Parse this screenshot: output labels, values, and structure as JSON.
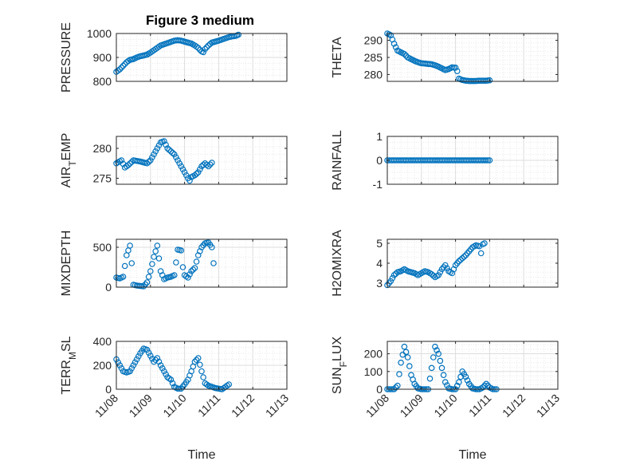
{
  "figure": {
    "title": "Figure 3 medium"
  },
  "chart_data": [
    {
      "type": "scatter",
      "id": "pressure",
      "ylabel": "PRESSURE",
      "xlabel": "",
      "ylim": [
        800,
        1000
      ],
      "yticks": [
        "800",
        "900",
        "1000"
      ],
      "xlim": [
        0,
        5
      ],
      "xticks": [],
      "grid": "on",
      "marker_color": "#0072BD",
      "curve": [
        [
          0.0,
          840
        ],
        [
          0.1,
          850
        ],
        [
          0.2,
          865
        ],
        [
          0.3,
          880
        ],
        [
          0.4,
          890
        ],
        [
          0.5,
          893
        ],
        [
          0.6,
          900
        ],
        [
          0.7,
          905
        ],
        [
          0.8,
          908
        ],
        [
          0.9,
          912
        ],
        [
          1.0,
          920
        ],
        [
          1.1,
          930
        ],
        [
          1.2,
          940
        ],
        [
          1.3,
          950
        ],
        [
          1.4,
          955
        ],
        [
          1.5,
          960
        ],
        [
          1.6,
          965
        ],
        [
          1.7,
          970
        ],
        [
          1.8,
          972
        ],
        [
          1.9,
          970
        ],
        [
          2.0,
          966
        ],
        [
          2.1,
          962
        ],
        [
          2.2,
          958
        ],
        [
          2.3,
          950
        ],
        [
          2.4,
          940
        ],
        [
          2.45,
          932
        ],
        [
          2.5,
          925
        ],
        [
          2.55,
          922
        ],
        [
          2.6,
          935
        ],
        [
          2.7,
          950
        ],
        [
          2.8,
          962
        ],
        [
          2.9,
          966
        ],
        [
          3.0,
          970
        ],
        [
          3.1,
          975
        ],
        [
          3.2,
          980
        ],
        [
          3.3,
          985
        ],
        [
          3.4,
          988
        ],
        [
          3.5,
          990
        ],
        [
          3.58,
          995
        ]
      ]
    },
    {
      "type": "scatter",
      "id": "theta",
      "ylabel": "THETA",
      "xlabel": "",
      "ylim": [
        278,
        292
      ],
      "yticks": [
        "280",
        "285",
        "290"
      ],
      "xlim": [
        0,
        5
      ],
      "xticks": [],
      "grid": "on",
      "marker_color": "#0072BD",
      "curve": [
        [
          0.0,
          292
        ],
        [
          0.1,
          291.5
        ],
        [
          0.2,
          289
        ],
        [
          0.3,
          287
        ],
        [
          0.4,
          286.5
        ],
        [
          0.5,
          286
        ],
        [
          0.6,
          285
        ],
        [
          0.7,
          284.5
        ],
        [
          0.8,
          284
        ],
        [
          0.9,
          283.6
        ],
        [
          1.0,
          283.3
        ],
        [
          1.1,
          283.2
        ],
        [
          1.2,
          283.1
        ],
        [
          1.3,
          283
        ],
        [
          1.4,
          282.7
        ],
        [
          1.5,
          282.3
        ],
        [
          1.6,
          281.8
        ],
        [
          1.7,
          281.3
        ],
        [
          1.8,
          281.6
        ],
        [
          1.9,
          282.1
        ],
        [
          2.0,
          282
        ],
        [
          2.05,
          281
        ],
        [
          2.1,
          278.8
        ],
        [
          2.2,
          278.4
        ],
        [
          2.3,
          278.2
        ],
        [
          2.4,
          278.1
        ],
        [
          2.5,
          278.1
        ],
        [
          2.6,
          278.1
        ],
        [
          2.7,
          278.2
        ],
        [
          2.8,
          278.2
        ],
        [
          2.9,
          278.2
        ],
        [
          3.0,
          278.3
        ]
      ]
    },
    {
      "type": "scatter",
      "id": "air_temp",
      "ylabel": "AIR",
      "ylabel_sub": "T",
      "ylabel_rest": "EMP",
      "xlabel": "",
      "ylim": [
        274,
        282
      ],
      "yticks": [
        "275",
        "280"
      ],
      "xlim": [
        0,
        5
      ],
      "xticks": [],
      "grid": "on",
      "marker_color": "#0072BD",
      "curve": [
        [
          0.0,
          277.5
        ],
        [
          0.15,
          278
        ],
        [
          0.25,
          276.8
        ],
        [
          0.35,
          277.2
        ],
        [
          0.5,
          278
        ],
        [
          0.7,
          277.8
        ],
        [
          0.9,
          277.5
        ],
        [
          1.0,
          278
        ],
        [
          1.1,
          279
        ],
        [
          1.2,
          280
        ],
        [
          1.3,
          281
        ],
        [
          1.4,
          281.2
        ],
        [
          1.5,
          280
        ],
        [
          1.6,
          279.5
        ],
        [
          1.7,
          279
        ],
        [
          1.8,
          278
        ],
        [
          1.9,
          277
        ],
        [
          2.0,
          276
        ],
        [
          2.1,
          275
        ],
        [
          2.15,
          274.6
        ],
        [
          2.2,
          275.2
        ],
        [
          2.3,
          275.5
        ],
        [
          2.4,
          276
        ],
        [
          2.5,
          277
        ],
        [
          2.6,
          277.5
        ],
        [
          2.7,
          277
        ],
        [
          2.8,
          277.6
        ]
      ]
    },
    {
      "type": "scatter",
      "id": "rainfall",
      "ylabel": "RAINFALL",
      "xlabel": "",
      "ylim": [
        -1,
        1
      ],
      "yticks": [
        "-1",
        "0",
        "1"
      ],
      "xlim": [
        0,
        5
      ],
      "xticks": [],
      "grid": "on",
      "marker_color": "#0072BD",
      "curve": [
        [
          0.0,
          0
        ],
        [
          3.0,
          0
        ]
      ]
    },
    {
      "type": "scatter",
      "id": "mixdepth",
      "ylabel": "MIXDEPTH",
      "xlabel": "",
      "ylim": [
        0,
        600
      ],
      "yticks": [
        "0",
        "500"
      ],
      "xlim": [
        0,
        5
      ],
      "xticks": [],
      "grid": "on",
      "marker_color": "#0072BD",
      "curve": [
        [
          0.0,
          120
        ],
        [
          0.1,
          110
        ],
        [
          0.2,
          130
        ],
        [
          0.3,
          400
        ],
        [
          0.4,
          520
        ],
        [
          0.45,
          300
        ],
        [
          0.5,
          30
        ],
        [
          0.6,
          20
        ],
        [
          0.7,
          15
        ],
        [
          0.8,
          10
        ],
        [
          0.9,
          60
        ],
        [
          1.0,
          200
        ],
        [
          1.1,
          380
        ],
        [
          1.2,
          520
        ],
        [
          1.3,
          200
        ],
        [
          1.4,
          100
        ],
        [
          1.5,
          120
        ],
        [
          1.6,
          130
        ],
        [
          1.7,
          150
        ],
        [
          1.8,
          470
        ],
        [
          1.9,
          460
        ],
        [
          1.95,
          250
        ],
        [
          2.0,
          150
        ],
        [
          2.1,
          120
        ],
        [
          2.2,
          200
        ],
        [
          2.3,
          240
        ],
        [
          2.4,
          400
        ],
        [
          2.5,
          500
        ],
        [
          2.6,
          550
        ],
        [
          2.7,
          560
        ],
        [
          2.8,
          500
        ],
        [
          2.85,
          300
        ]
      ]
    },
    {
      "type": "scatter",
      "id": "h2omixra",
      "ylabel": "H2OMIXRA",
      "xlabel": "",
      "ylim": [
        2.8,
        5.2
      ],
      "yticks": [
        "3",
        "4",
        "5"
      ],
      "xlim": [
        0,
        5
      ],
      "xticks": [],
      "grid": "on",
      "marker_color": "#0072BD",
      "curve": [
        [
          0.0,
          2.9
        ],
        [
          0.1,
          3.1
        ],
        [
          0.2,
          3.4
        ],
        [
          0.3,
          3.55
        ],
        [
          0.4,
          3.6
        ],
        [
          0.5,
          3.7
        ],
        [
          0.6,
          3.6
        ],
        [
          0.7,
          3.55
        ],
        [
          0.8,
          3.5
        ],
        [
          0.9,
          3.4
        ],
        [
          1.0,
          3.5
        ],
        [
          1.1,
          3.6
        ],
        [
          1.2,
          3.55
        ],
        [
          1.3,
          3.45
        ],
        [
          1.4,
          3.3
        ],
        [
          1.5,
          3.4
        ],
        [
          1.6,
          3.7
        ],
        [
          1.7,
          3.9
        ],
        [
          1.8,
          3.6
        ],
        [
          1.9,
          3.5
        ],
        [
          2.0,
          3.9
        ],
        [
          2.1,
          4.1
        ],
        [
          2.2,
          4.25
        ],
        [
          2.3,
          4.4
        ],
        [
          2.4,
          4.6
        ],
        [
          2.5,
          4.8
        ],
        [
          2.6,
          4.9
        ],
        [
          2.7,
          4.85
        ],
        [
          2.75,
          4.5
        ],
        [
          2.8,
          4.95
        ],
        [
          2.85,
          5.0
        ]
      ]
    },
    {
      "type": "scatter",
      "id": "terr_msl",
      "ylabel": "TERR",
      "ylabel_sub": "M",
      "ylabel_rest": "SL",
      "xlabel": "Time",
      "ylim": [
        0,
        400
      ],
      "yticks": [
        "0",
        "200",
        "400"
      ],
      "xlim": [
        0,
        5
      ],
      "xticks": [
        "11/08",
        "11/09",
        "11/10",
        "11/11",
        "11/12",
        "11/13"
      ],
      "grid": "on",
      "marker_color": "#0072BD",
      "curve": [
        [
          0.0,
          250
        ],
        [
          0.1,
          200
        ],
        [
          0.2,
          150
        ],
        [
          0.3,
          140
        ],
        [
          0.4,
          150
        ],
        [
          0.5,
          200
        ],
        [
          0.6,
          250
        ],
        [
          0.7,
          300
        ],
        [
          0.8,
          340
        ],
        [
          0.9,
          330
        ],
        [
          1.0,
          280
        ],
        [
          1.1,
          230
        ],
        [
          1.2,
          260
        ],
        [
          1.3,
          200
        ],
        [
          1.4,
          150
        ],
        [
          1.5,
          100
        ],
        [
          1.6,
          80
        ],
        [
          1.7,
          20
        ],
        [
          1.8,
          5
        ],
        [
          1.9,
          5
        ],
        [
          2.0,
          40
        ],
        [
          2.1,
          80
        ],
        [
          2.2,
          150
        ],
        [
          2.3,
          230
        ],
        [
          2.4,
          260
        ],
        [
          2.5,
          150
        ],
        [
          2.6,
          50
        ],
        [
          2.7,
          30
        ],
        [
          2.8,
          20
        ],
        [
          2.9,
          10
        ],
        [
          3.0,
          5
        ],
        [
          3.1,
          0
        ],
        [
          3.2,
          20
        ],
        [
          3.3,
          40
        ]
      ]
    },
    {
      "type": "scatter",
      "id": "sun_flux",
      "ylabel": "SUN",
      "ylabel_sub": "F",
      "ylabel_rest": "LUX",
      "xlabel": "Time",
      "ylim": [
        0,
        270
      ],
      "yticks": [
        "0",
        "100",
        "200"
      ],
      "xlim": [
        0,
        5
      ],
      "xticks": [
        "11/08",
        "11/09",
        "11/10",
        "11/11",
        "11/12",
        "11/13"
      ],
      "grid": "on",
      "marker_color": "#0072BD",
      "curve": [
        [
          0.0,
          0
        ],
        [
          0.1,
          0
        ],
        [
          0.2,
          0
        ],
        [
          0.3,
          20
        ],
        [
          0.4,
          150
        ],
        [
          0.5,
          240
        ],
        [
          0.6,
          180
        ],
        [
          0.7,
          80
        ],
        [
          0.8,
          30
        ],
        [
          0.9,
          5
        ],
        [
          1.0,
          0
        ],
        [
          1.1,
          0
        ],
        [
          1.2,
          0
        ],
        [
          1.3,
          120
        ],
        [
          1.4,
          240
        ],
        [
          1.5,
          200
        ],
        [
          1.6,
          120
        ],
        [
          1.7,
          40
        ],
        [
          1.8,
          5
        ],
        [
          1.9,
          0
        ],
        [
          2.0,
          0
        ],
        [
          2.1,
          40
        ],
        [
          2.2,
          100
        ],
        [
          2.3,
          70
        ],
        [
          2.4,
          30
        ],
        [
          2.5,
          5
        ],
        [
          2.6,
          0
        ],
        [
          2.7,
          0
        ],
        [
          2.8,
          10
        ],
        [
          2.9,
          30
        ],
        [
          3.0,
          10
        ],
        [
          3.1,
          0
        ],
        [
          3.2,
          0
        ]
      ]
    }
  ]
}
